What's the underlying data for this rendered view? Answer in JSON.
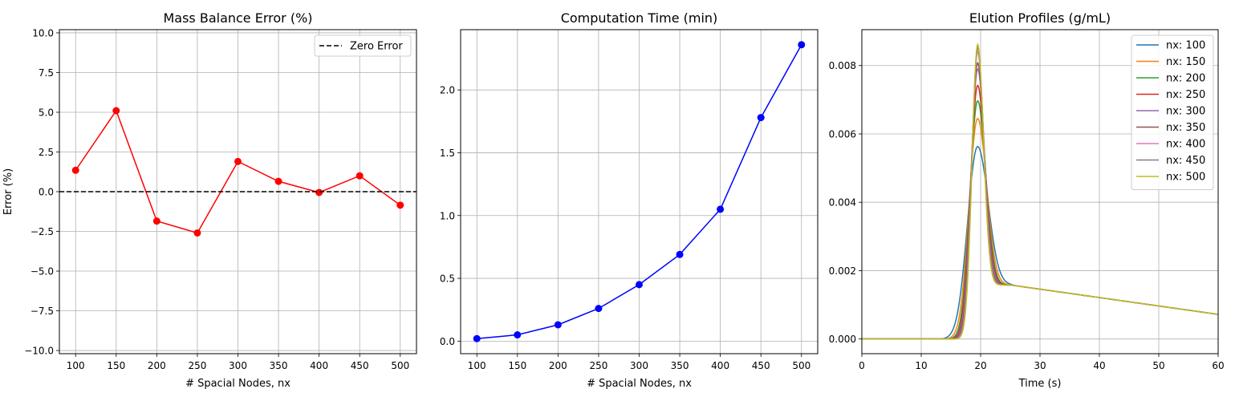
{
  "chart_data": [
    {
      "type": "line",
      "title": "Mass Balance Error (%)",
      "xlabel": "# Spacial Nodes, nx",
      "ylabel": "Error (%)",
      "xlim": [
        80,
        520
      ],
      "ylim": [
        -10.2,
        10.2
      ],
      "xticks": [
        100,
        150,
        200,
        250,
        300,
        350,
        400,
        450,
        500
      ],
      "xtick_labels": [
        "100",
        "150",
        "200",
        "250",
        "300",
        "350",
        "400",
        "450",
        "500"
      ],
      "yticks": [
        -10,
        -7.5,
        -5,
        -2.5,
        0,
        2.5,
        5,
        7.5,
        10
      ],
      "ytick_labels": [
        "−10.0",
        "−7.5",
        "−5.0",
        "−2.5",
        "0.0",
        "2.5",
        "5.0",
        "7.5",
        "10.0"
      ],
      "grid": true,
      "legend_position": "upper right",
      "series": [
        {
          "color": "#ff0000",
          "marker": "circle",
          "x": [
            100,
            150,
            200,
            250,
            300,
            350,
            400,
            450,
            500
          ],
          "y": [
            1.35,
            5.1,
            -1.85,
            -2.6,
            1.9,
            0.65,
            -0.05,
            1.0,
            -0.85
          ]
        },
        {
          "name": "Zero Error",
          "color": "#000000",
          "dash": true,
          "hline": 0
        }
      ]
    },
    {
      "type": "line",
      "title": "Computation Time (min)",
      "xlabel": "# Spacial Nodes, nx",
      "ylabel": "",
      "xlim": [
        80,
        520
      ],
      "ylim": [
        -0.1,
        2.48
      ],
      "xticks": [
        100,
        150,
        200,
        250,
        300,
        350,
        400,
        450,
        500
      ],
      "xtick_labels": [
        "100",
        "150",
        "200",
        "250",
        "300",
        "350",
        "400",
        "450",
        "500"
      ],
      "yticks": [
        0,
        0.5,
        1.0,
        1.5,
        2.0
      ],
      "ytick_labels": [
        "0.0",
        "0.5",
        "1.0",
        "1.5",
        "2.0"
      ],
      "grid": true,
      "series": [
        {
          "color": "#0000ff",
          "marker": "circle",
          "x": [
            100,
            150,
            200,
            250,
            300,
            350,
            400,
            450,
            500
          ],
          "y": [
            0.02,
            0.05,
            0.13,
            0.26,
            0.45,
            0.69,
            1.05,
            1.78,
            2.36
          ]
        }
      ]
    },
    {
      "type": "line",
      "title": "Elution Profiles (g/mL)",
      "xlabel": "Time (s)",
      "ylabel": "",
      "xlim": [
        0,
        60
      ],
      "ylim": [
        -0.00043,
        0.00905
      ],
      "xticks": [
        0,
        10,
        20,
        30,
        40,
        50,
        60
      ],
      "xtick_labels": [
        "0",
        "10",
        "20",
        "30",
        "40",
        "50",
        "60"
      ],
      "yticks": [
        0,
        0.002,
        0.004,
        0.006,
        0.008
      ],
      "ytick_labels": [
        "0.000",
        "0.002",
        "0.004",
        "0.006",
        "0.008"
      ],
      "grid": true,
      "legend_position": "upper right",
      "series": [
        {
          "name": "nx: 100",
          "color": "#1f77b4",
          "peak": 0.00563,
          "onset": 13.0,
          "rise": 1.7,
          "fall": 1.75
        },
        {
          "name": "nx: 150",
          "color": "#ff7f0e",
          "peak": 0.00645,
          "onset": 13.8,
          "rise": 1.45,
          "fall": 1.5
        },
        {
          "name": "nx: 200",
          "color": "#2ca02c",
          "peak": 0.00697,
          "onset": 14.3,
          "rise": 1.3,
          "fall": 1.35
        },
        {
          "name": "nx: 250",
          "color": "#d62728",
          "peak": 0.00742,
          "onset": 14.6,
          "rise": 1.2,
          "fall": 1.25
        },
        {
          "name": "nx: 300",
          "color": "#9467bd",
          "peak": 0.0079,
          "onset": 14.9,
          "rise": 1.12,
          "fall": 1.17
        },
        {
          "name": "nx: 350",
          "color": "#8c564b",
          "peak": 0.00808,
          "onset": 15.1,
          "rise": 1.06,
          "fall": 1.1
        },
        {
          "name": "nx: 400",
          "color": "#e377c2",
          "peak": 0.0084,
          "onset": 15.2,
          "rise": 1.0,
          "fall": 1.05
        },
        {
          "name": "nx: 450",
          "color": "#7f7f7f",
          "peak": 0.00852,
          "onset": 15.3,
          "rise": 0.97,
          "fall": 1.02
        },
        {
          "name": "nx: 500",
          "color": "#bcbd22",
          "peak": 0.00862,
          "onset": 15.4,
          "rise": 0.94,
          "fall": 0.99
        }
      ],
      "peak_time": 19.5,
      "tail": {
        "t_start": 25,
        "y_start": 0.00158,
        "t_end": 60,
        "y_end": 0.00072
      }
    }
  ]
}
